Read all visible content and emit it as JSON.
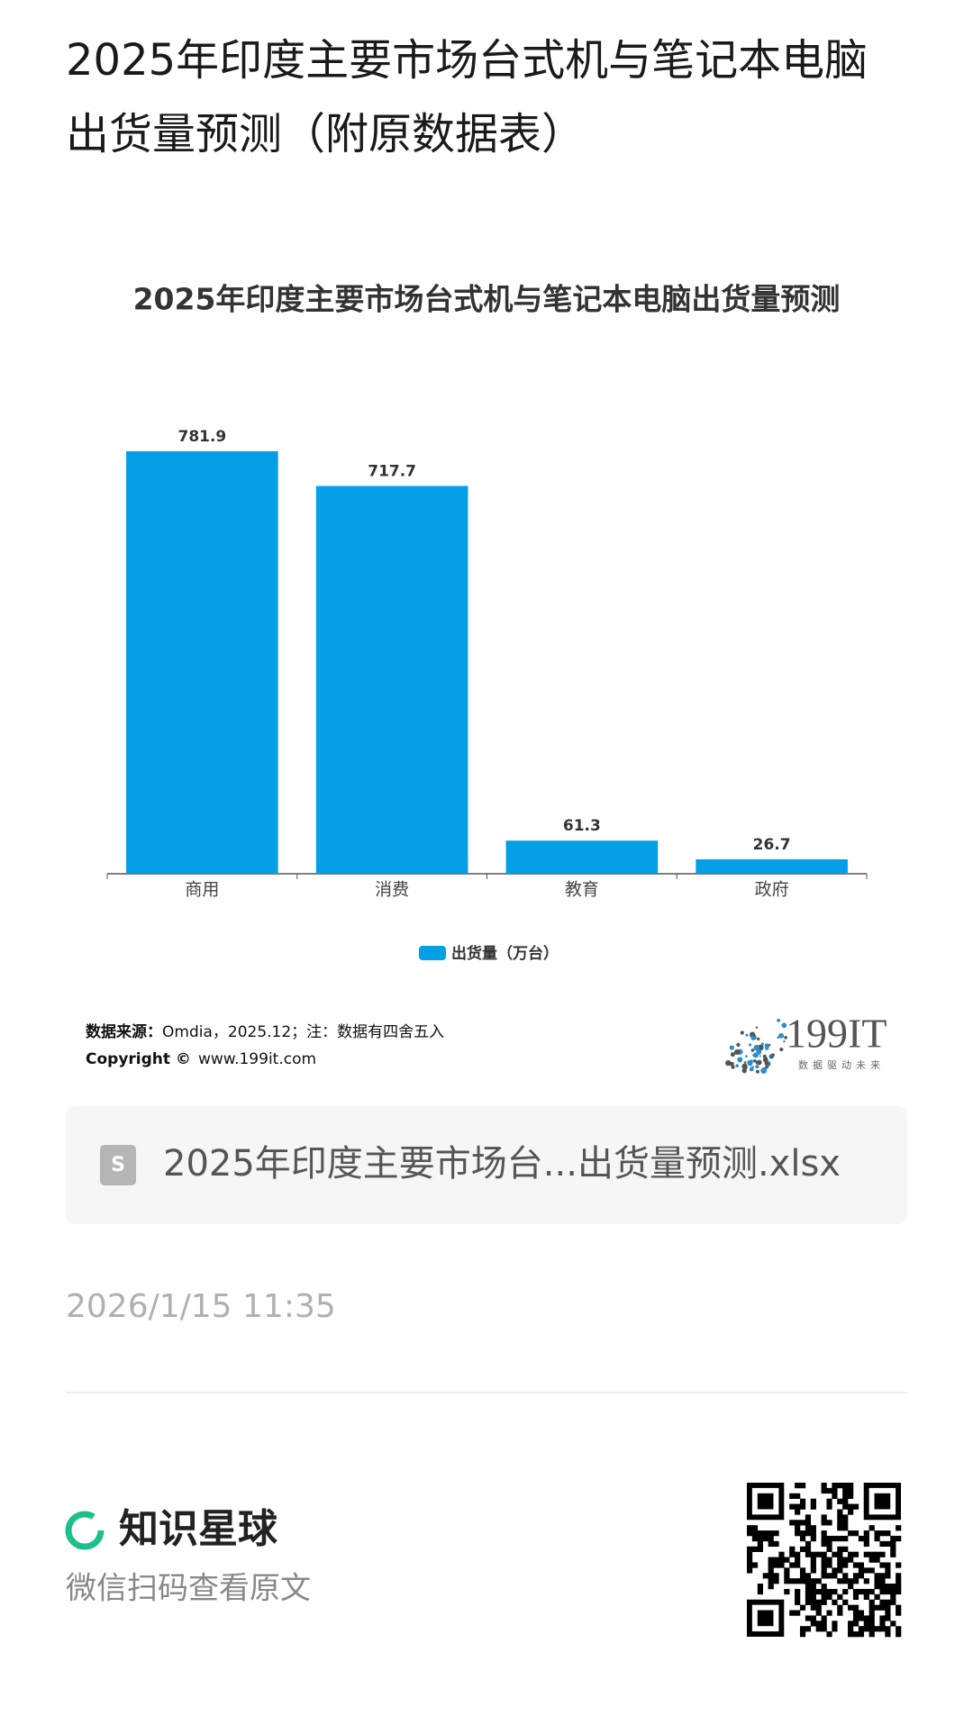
{
  "header": {
    "title_lines": [
      "2025年印度主要市场台式机与笔记本电脑",
      "出货量预测（附原数据表）"
    ]
  },
  "chart_data": {
    "type": "bar",
    "title": "2025年印度主要市场台式机与笔记本电脑出货量预测",
    "categories": [
      "商用",
      "消费",
      "教育",
      "政府"
    ],
    "series": [
      {
        "name": "出货量（万台）",
        "color": "#049fe5",
        "values": [
          781.9,
          717.7,
          61.3,
          26.7
        ]
      }
    ],
    "legend": "bottom"
  },
  "source": {
    "label": "数据来源：",
    "text": "Omdia，2025.12；注：数据有四舍五入"
  },
  "copyright": {
    "label": "Copyright ©",
    "text": "www.199it.com"
  },
  "logo": {
    "name": "199IT",
    "slogan": "数据驱动未来"
  },
  "attachment": {
    "file_name": "2025年印度主要市场台...出货量预测.xlsx"
  },
  "date": "2026/1/15 11:35",
  "footer": {
    "brand": "知识星球",
    "hint": "微信扫码查看原文"
  }
}
